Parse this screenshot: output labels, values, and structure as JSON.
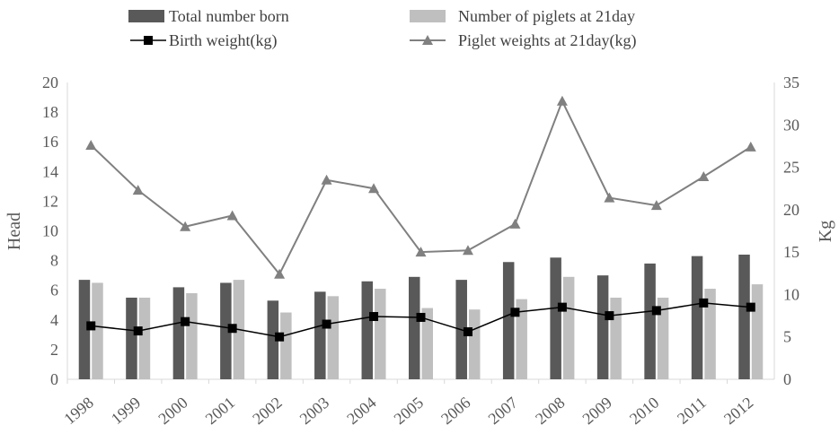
{
  "chart_data": {
    "type": "bar",
    "categories": [
      "1998",
      "1999",
      "2000",
      "2001",
      "2002",
      "2003",
      "2004",
      "2005",
      "2006",
      "2007",
      "2008",
      "2009",
      "2010",
      "2011",
      "2012"
    ],
    "series": [
      {
        "name": "Total number born",
        "type": "bar",
        "axis": "left",
        "color": "#595959",
        "values": [
          6.7,
          5.5,
          6.2,
          6.5,
          5.3,
          5.9,
          6.6,
          6.9,
          6.7,
          7.9,
          8.2,
          7.0,
          7.8,
          8.3,
          8.4
        ]
      },
      {
        "name": "Number of piglets at 21day",
        "type": "bar",
        "axis": "left",
        "color": "#bfbfbf",
        "values": [
          6.5,
          5.5,
          5.8,
          6.7,
          4.5,
          5.6,
          6.1,
          4.8,
          4.7,
          5.4,
          6.9,
          5.5,
          5.5,
          6.1,
          6.4
        ]
      },
      {
        "name": "Birth weight(kg)",
        "type": "line",
        "marker": "square",
        "axis": "right",
        "color": "#000000",
        "values": [
          6.3,
          5.7,
          6.8,
          6.0,
          5.0,
          6.5,
          7.4,
          7.3,
          5.6,
          7.9,
          8.5,
          7.5,
          8.1,
          9.0,
          8.5
        ]
      },
      {
        "name": "Piglet weights at 21day(kg)",
        "type": "line",
        "marker": "triangle",
        "axis": "right",
        "color": "#808080",
        "values": [
          27.6,
          22.3,
          18.0,
          19.3,
          12.4,
          23.5,
          22.5,
          15.0,
          15.2,
          18.3,
          32.8,
          21.4,
          20.5,
          23.9,
          27.4
        ]
      }
    ],
    "ylabel": "Head",
    "y2label": "Kg",
    "ylim": [
      0,
      20
    ],
    "y2lim": [
      0,
      35
    ],
    "yticks": [
      "0",
      "2",
      "4",
      "6",
      "8",
      "10",
      "12",
      "14",
      "16",
      "18",
      "20"
    ],
    "y2ticks": [
      "0",
      "5",
      "10",
      "15",
      "20",
      "25",
      "30",
      "35"
    ],
    "grid": false,
    "legend": "top"
  }
}
